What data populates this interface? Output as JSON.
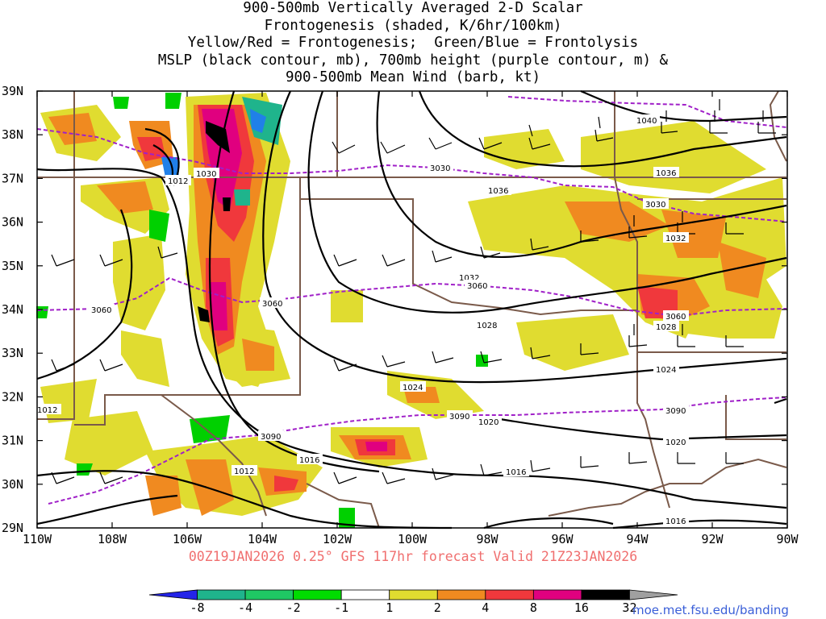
{
  "title": {
    "lines": [
      "900-500mb Vertically Averaged 2-D Scalar",
      "Frontogenesis (shaded, K/6hr/100km)",
      "Yellow/Red = Frontogenesis;  Green/Blue = Frontolysis",
      "MSLP (black contour, mb), 700mb height (purple contour, m) &",
      "900-500mb Mean Wind (barb, kt)"
    ]
  },
  "map": {
    "lat_labels": [
      "39N",
      "38N",
      "37N",
      "36N",
      "35N",
      "34N",
      "33N",
      "32N",
      "31N",
      "30N",
      "29N"
    ],
    "lon_labels": [
      "110W",
      "108W",
      "106W",
      "104W",
      "102W",
      "100W",
      "98W",
      "96W",
      "94W",
      "92W",
      "90W"
    ],
    "lon_range": [
      -110,
      -90
    ],
    "lat_range": [
      29,
      39
    ],
    "mslp_labels": [
      "1040",
      "1036",
      "1036",
      "1032",
      "1032",
      "1028",
      "1028",
      "1024",
      "1024",
      "1020",
      "1020",
      "1016",
      "1016",
      "1016",
      "1012",
      "1012",
      "1012",
      "1030"
    ],
    "height_labels": [
      "3030",
      "3030",
      "3060",
      "3060",
      "3060",
      "3060",
      "3090",
      "3090",
      "3090"
    ],
    "colors": {
      "mslp": "#000000",
      "height": "#a020c8",
      "borders": "#7a5a4a",
      "frontogenesis": [
        "#e0dc30",
        "#f08a20",
        "#f0383c",
        "#e0007f",
        "#000000"
      ],
      "frontolysis": [
        "#00d000",
        "#00c060",
        "#2080e8",
        "#2020e8"
      ]
    }
  },
  "colorbar": {
    "ticks": [
      "-8",
      "-4",
      "-2",
      "-1",
      "1",
      "2",
      "4",
      "8",
      "16",
      "32"
    ],
    "colors": [
      "#2424e8",
      "#1fb48c",
      "#1fc864",
      "#00dc00",
      "#ffffff",
      "#e0dc30",
      "#f08a20",
      "#f0383c",
      "#e0007f",
      "#000000",
      "#a0a0a0"
    ]
  },
  "footer": "00Z19JAN2026 0.25° GFS 117hr forecast Valid 21Z23JAN2026",
  "credit": "moe.met.fsu.edu/banding"
}
